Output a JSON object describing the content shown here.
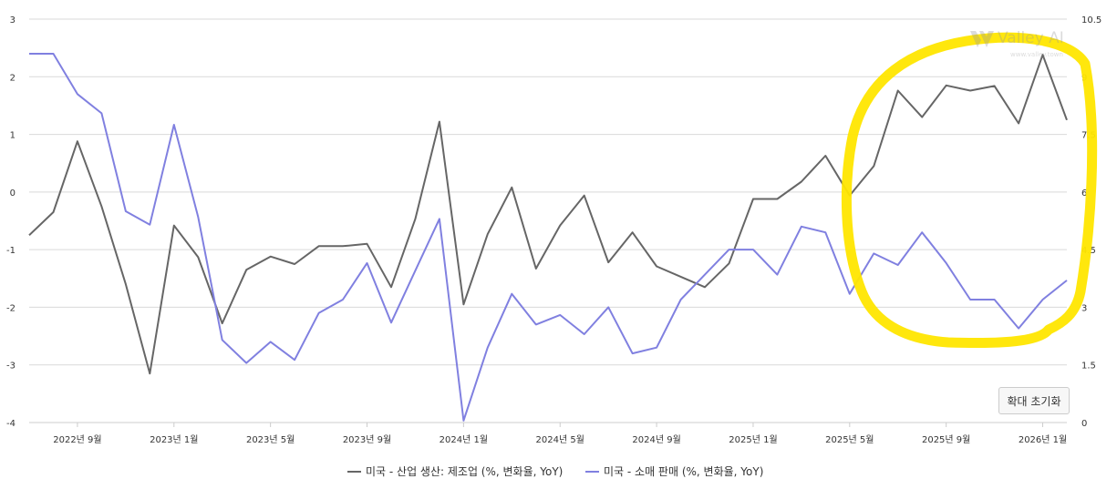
{
  "chart_data": {
    "type": "line",
    "x": [
      "2022-07",
      "2022-08",
      "2022-09",
      "2022-10",
      "2022-11",
      "2022-12",
      "2023-01",
      "2023-02",
      "2023-03",
      "2023-04",
      "2023-05",
      "2023-06",
      "2023-07",
      "2023-08",
      "2023-09",
      "2023-10",
      "2023-11",
      "2023-12",
      "2024-01",
      "2024-02",
      "2024-03",
      "2024-04",
      "2024-05",
      "2024-06",
      "2024-07",
      "2024-08",
      "2024-09",
      "2024-10",
      "2024-11",
      "2024-12",
      "2025-01",
      "2025-02",
      "2025-03",
      "2025-04",
      "2025-05",
      "2025-06",
      "2025-07",
      "2025-08",
      "2025-09",
      "2025-10",
      "2025-11",
      "2025-12",
      "2026-01",
      "2026-02"
    ],
    "x_tick_labels": [
      "2022년 9월",
      "2023년 1월",
      "2023년 5월",
      "2023년 9월",
      "2024년 1월",
      "2024년 5월",
      "2024년 9월",
      "2025년 1월",
      "2025년 5월",
      "2025년 9월",
      "2026년 1월"
    ],
    "y_left": {
      "range": [
        -4,
        3
      ],
      "ticks": [
        "3",
        "2",
        "1",
        "0",
        "-1",
        "-2",
        "-3",
        "-4"
      ]
    },
    "y_right": {
      "range": [
        0,
        10.5
      ],
      "ticks": [
        "10.5",
        "9",
        "7.5",
        "6",
        "4.5",
        "3",
        "1.5",
        "0"
      ]
    },
    "series": [
      {
        "name": "미국 - 산업 생산: 제조업 (%, 변화율, YoY)",
        "axis": "left",
        "color": "#666666",
        "values": [
          -0.75,
          -0.35,
          0.88,
          -0.25,
          -1.6,
          -3.15,
          -0.58,
          -1.13,
          -2.28,
          -1.35,
          -1.12,
          -1.25,
          -0.94,
          -0.94,
          -0.9,
          -1.65,
          -0.47,
          1.22,
          -1.95,
          -0.73,
          0.08,
          -1.33,
          -0.58,
          -0.06,
          -1.22,
          -0.7,
          -1.29,
          -1.47,
          -1.65,
          -1.24,
          -0.12,
          -0.12,
          0.18,
          0.63,
          -0.06,
          0.45,
          1.76,
          1.3,
          1.85,
          1.76,
          1.84,
          1.19,
          2.38,
          1.25
        ]
      },
      {
        "name": "미국 - 소매 판매 (%, 변화율, YoY)",
        "axis": "right",
        "color": "#8080e0",
        "values": [
          9.6,
          9.6,
          8.55,
          8.05,
          5.5,
          5.15,
          7.75,
          5.35,
          2.15,
          1.55,
          2.1,
          1.63,
          2.85,
          3.2,
          4.15,
          2.6,
          3.95,
          5.3,
          0.05,
          1.95,
          3.35,
          2.55,
          2.8,
          2.3,
          3.0,
          1.8,
          1.95,
          3.2,
          3.85,
          4.5,
          4.5,
          3.85,
          5.1,
          4.95,
          3.35,
          4.4,
          4.1,
          4.95,
          4.15,
          3.2,
          3.2,
          2.45,
          3.2,
          3.7
        ]
      }
    ],
    "legend_position": "bottom",
    "grid": true
  },
  "watermark": {
    "name": "Valley AI",
    "url": "www.valley.town"
  },
  "reset_button": {
    "label": "확대 초기화"
  },
  "highlight_color": "#ffe600"
}
